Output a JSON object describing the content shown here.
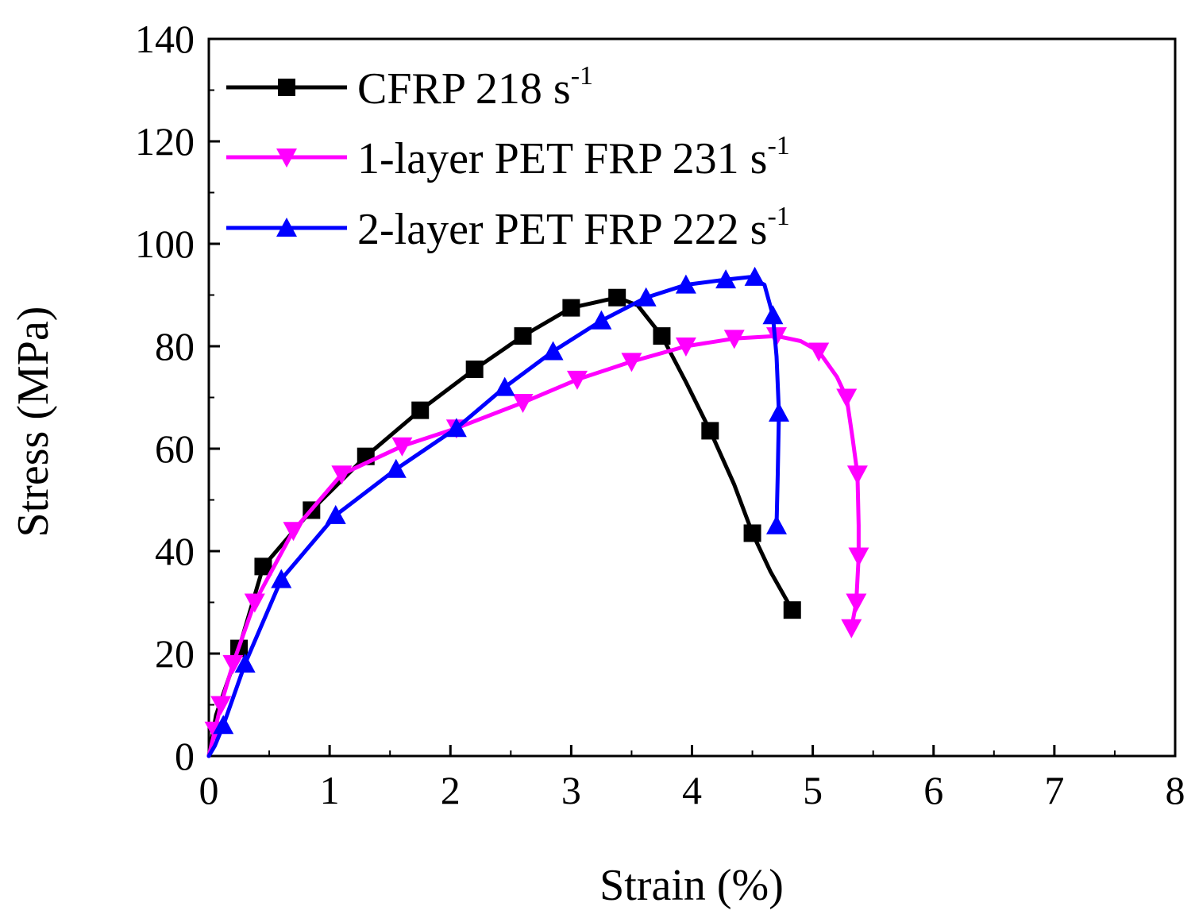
{
  "chart_data": {
    "type": "line",
    "xlabel": "Strain (%)",
    "ylabel": "Stress (MPa)",
    "xlim": [
      0,
      8
    ],
    "ylim": [
      0,
      140
    ],
    "xticks": [
      0,
      1,
      2,
      3,
      4,
      5,
      6,
      7,
      8
    ],
    "yticks": [
      0,
      20,
      40,
      60,
      80,
      100,
      120,
      140
    ],
    "grid": false,
    "legend_position": "top-left",
    "series": [
      {
        "name": "CFRP 218 s",
        "legend_base": "CFRP 218 s",
        "legend_sup": "-1",
        "color": "#000000",
        "marker": "square",
        "curve": [
          [
            0,
            0
          ],
          [
            0.06,
            8
          ],
          [
            0.25,
            21
          ],
          [
            0.45,
            37
          ],
          [
            0.85,
            48
          ],
          [
            1.3,
            58.5
          ],
          [
            1.75,
            67.5
          ],
          [
            2.2,
            75.5
          ],
          [
            2.6,
            82
          ],
          [
            3.0,
            87.5
          ],
          [
            3.38,
            89.5
          ],
          [
            3.55,
            88
          ],
          [
            3.75,
            82
          ],
          [
            3.95,
            73
          ],
          [
            4.15,
            63.5
          ],
          [
            4.35,
            53
          ],
          [
            4.5,
            43.5
          ],
          [
            4.65,
            36
          ],
          [
            4.83,
            28.5
          ]
        ],
        "markers": [
          [
            0.25,
            21
          ],
          [
            0.45,
            37
          ],
          [
            0.85,
            48
          ],
          [
            1.3,
            58.5
          ],
          [
            1.75,
            67.5
          ],
          [
            2.2,
            75.5
          ],
          [
            2.6,
            82
          ],
          [
            3.0,
            87.5
          ],
          [
            3.38,
            89.5
          ],
          [
            3.75,
            82
          ],
          [
            4.15,
            63.5
          ],
          [
            4.5,
            43.5
          ],
          [
            4.83,
            28.5
          ]
        ]
      },
      {
        "name": "1-layer PET FRP 231 s",
        "legend_base": "1-layer PET FRP  231 s",
        "legend_sup": "-1",
        "color": "#ff00ff",
        "marker": "triangle-down",
        "curve": [
          [
            0,
            0
          ],
          [
            0.05,
            5
          ],
          [
            0.1,
            10
          ],
          [
            0.2,
            18
          ],
          [
            0.38,
            30
          ],
          [
            0.7,
            44
          ],
          [
            1.1,
            55
          ],
          [
            1.6,
            60.5
          ],
          [
            2.05,
            64
          ],
          [
            2.6,
            69
          ],
          [
            3.05,
            73.5
          ],
          [
            3.5,
            77
          ],
          [
            3.95,
            80
          ],
          [
            4.35,
            81.5
          ],
          [
            4.7,
            82
          ],
          [
            4.9,
            81
          ],
          [
            5.05,
            79
          ],
          [
            5.2,
            74
          ],
          [
            5.28,
            70
          ],
          [
            5.33,
            62
          ],
          [
            5.37,
            55
          ],
          [
            5.38,
            45
          ],
          [
            5.38,
            39
          ],
          [
            5.36,
            30
          ],
          [
            5.32,
            25
          ]
        ],
        "markers": [
          [
            0.05,
            5
          ],
          [
            0.1,
            10
          ],
          [
            0.2,
            18
          ],
          [
            0.38,
            30
          ],
          [
            0.7,
            44
          ],
          [
            1.1,
            55
          ],
          [
            1.6,
            60.5
          ],
          [
            2.05,
            64
          ],
          [
            2.6,
            69
          ],
          [
            3.05,
            73.5
          ],
          [
            3.5,
            77
          ],
          [
            3.95,
            80
          ],
          [
            4.35,
            81.5
          ],
          [
            4.7,
            82
          ],
          [
            5.05,
            79
          ],
          [
            5.28,
            70
          ],
          [
            5.37,
            55
          ],
          [
            5.38,
            39
          ],
          [
            5.36,
            30
          ],
          [
            5.32,
            25
          ]
        ]
      },
      {
        "name": "2-layer PET FRP 222 s",
        "legend_base": "2-layer PET FRP  222 s",
        "legend_sup": "-1",
        "color": "#0000ff",
        "marker": "triangle-up",
        "curve": [
          [
            0,
            0
          ],
          [
            0.05,
            2
          ],
          [
            0.12,
            6
          ],
          [
            0.3,
            18
          ],
          [
            0.6,
            34.5
          ],
          [
            1.05,
            47
          ],
          [
            1.55,
            56
          ],
          [
            2.05,
            64
          ],
          [
            2.45,
            72
          ],
          [
            2.85,
            79
          ],
          [
            3.25,
            85
          ],
          [
            3.62,
            89.5
          ],
          [
            3.95,
            92
          ],
          [
            4.28,
            93
          ],
          [
            4.48,
            93.5
          ],
          [
            4.6,
            92
          ],
          [
            4.67,
            86
          ],
          [
            4.7,
            78
          ],
          [
            4.72,
            67
          ],
          [
            4.71,
            55
          ],
          [
            4.7,
            45
          ]
        ],
        "markers": [
          [
            0.12,
            6
          ],
          [
            0.3,
            18
          ],
          [
            0.6,
            34.5
          ],
          [
            1.05,
            47
          ],
          [
            1.55,
            56
          ],
          [
            2.05,
            64
          ],
          [
            2.45,
            72
          ],
          [
            2.85,
            79
          ],
          [
            3.25,
            85
          ],
          [
            3.62,
            89.5
          ],
          [
            3.95,
            92
          ],
          [
            4.28,
            93
          ],
          [
            4.52,
            93.5
          ],
          [
            4.67,
            86
          ],
          [
            4.72,
            67
          ],
          [
            4.7,
            45
          ]
        ]
      }
    ]
  }
}
